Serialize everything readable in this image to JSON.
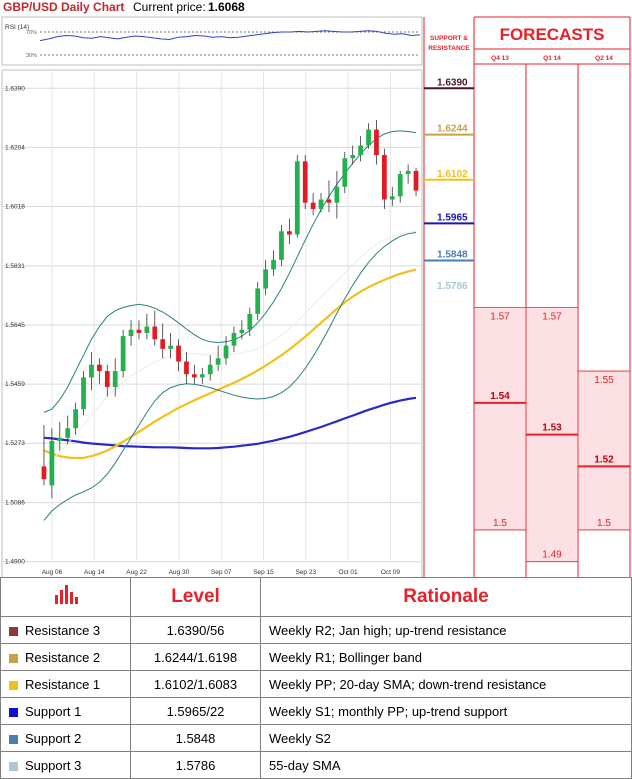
{
  "header": {
    "title": "GBP/USD Daily Chart",
    "price_label": "Current price:",
    "price_value": "1.6068"
  },
  "rsi": {
    "label": "RSI (14)",
    "upper_label": "70%",
    "lower_label": "30%",
    "values": [
      55,
      58,
      62,
      64,
      63,
      60,
      59,
      62,
      60,
      58,
      61,
      63,
      62,
      60,
      58,
      57,
      61,
      62,
      64,
      63,
      61,
      62,
      60,
      61,
      63,
      65,
      67,
      69,
      70,
      70,
      71,
      70,
      71,
      72,
      71,
      70,
      70,
      71,
      72,
      71,
      68,
      66,
      67,
      64,
      65
    ]
  },
  "panel": {
    "support_resistance_label": "SUPPORT & RESISTANCE",
    "forecasts_label": "FORECASTS",
    "quarters": [
      "Q4 13",
      "Q1 14",
      "Q2 14"
    ],
    "forecast_ranges": [
      {
        "quarter": "Q4 13",
        "high": "1.57",
        "mid": "1.54",
        "low": "1.5",
        "high_v": 1.57,
        "mid_v": 1.54,
        "low_v": 1.5
      },
      {
        "quarter": "Q1 14",
        "high": "1.57",
        "mid": "1.53",
        "low": "1.49",
        "high_v": 1.57,
        "mid_v": 1.53,
        "low_v": 1.49
      },
      {
        "quarter": "Q2 14",
        "high": "1.55",
        "mid": "1.52",
        "low": "1.5",
        "high_v": 1.55,
        "mid_v": 1.52,
        "low_v": 1.5
      }
    ],
    "levels": [
      {
        "label": "1.6390",
        "value": 1.639,
        "color": "#4b1528"
      },
      {
        "label": "1.6244",
        "value": 1.6244,
        "color": "#c9a14a"
      },
      {
        "label": "1.6102",
        "value": 1.6102,
        "color": "#f2c018"
      },
      {
        "label": "1.5965",
        "value": 1.5965,
        "color": "#1616b0"
      },
      {
        "label": "1.5848",
        "value": 1.5848,
        "color": "#4a7eb0"
      },
      {
        "label": "1.5786",
        "value": 1.5786,
        "color": "#a9c8d8"
      }
    ]
  },
  "chart_data": {
    "type": "candlestick",
    "title": "GBP/USD Daily Chart",
    "ylim": [
      1.4855,
      1.6435
    ],
    "y_ticks": [
      "1.4900",
      "1.5086",
      "1.5273",
      "1.5459",
      "1.5645",
      "1.5831",
      "1.6018",
      "1.6204",
      "1.6390"
    ],
    "x_ticks": [
      "Aug 06",
      "Aug 14",
      "Aug 22",
      "Aug 30",
      "Sep 07",
      "Sep 15",
      "Sep 23",
      "Oct 01",
      "Oct 09"
    ],
    "candles": [
      [
        1.52,
        1.533,
        1.516,
        1.514
      ],
      [
        1.514,
        1.532,
        1.528,
        1.51
      ],
      [
        1.528,
        1.534,
        1.529,
        1.525
      ],
      [
        1.529,
        1.536,
        1.532,
        1.527
      ],
      [
        1.532,
        1.54,
        1.538,
        1.53
      ],
      [
        1.538,
        1.55,
        1.548,
        1.536
      ],
      [
        1.548,
        1.556,
        1.552,
        1.544
      ],
      [
        1.552,
        1.554,
        1.55,
        1.546
      ],
      [
        1.55,
        1.552,
        1.545,
        1.542
      ],
      [
        1.545,
        1.554,
        1.55,
        1.542
      ],
      [
        1.55,
        1.563,
        1.561,
        1.548
      ],
      [
        1.561,
        1.566,
        1.563,
        1.558
      ],
      [
        1.563,
        1.566,
        1.562,
        1.56
      ],
      [
        1.562,
        1.568,
        1.564,
        1.56
      ],
      [
        1.564,
        1.569,
        1.56,
        1.558
      ],
      [
        1.56,
        1.565,
        1.557,
        1.554
      ],
      [
        1.557,
        1.562,
        1.558,
        1.554
      ],
      [
        1.558,
        1.56,
        1.553,
        1.55
      ],
      [
        1.553,
        1.556,
        1.549,
        1.546
      ],
      [
        1.549,
        1.552,
        1.548,
        1.546
      ],
      [
        1.548,
        1.551,
        1.549,
        1.546
      ],
      [
        1.549,
        1.555,
        1.552,
        1.547
      ],
      [
        1.552,
        1.558,
        1.554,
        1.55
      ],
      [
        1.554,
        1.561,
        1.558,
        1.552
      ],
      [
        1.558,
        1.564,
        1.562,
        1.556
      ],
      [
        1.562,
        1.566,
        1.563,
        1.56
      ],
      [
        1.563,
        1.57,
        1.568,
        1.561
      ],
      [
        1.568,
        1.578,
        1.576,
        1.566
      ],
      [
        1.576,
        1.585,
        1.582,
        1.574
      ],
      [
        1.582,
        1.588,
        1.585,
        1.58
      ],
      [
        1.585,
        1.596,
        1.594,
        1.583
      ],
      [
        1.594,
        1.598,
        1.593,
        1.59
      ],
      [
        1.593,
        1.618,
        1.616,
        1.592
      ],
      [
        1.616,
        1.618,
        1.603,
        1.601
      ],
      [
        1.603,
        1.606,
        1.601,
        1.599
      ],
      [
        1.601,
        1.606,
        1.604,
        1.6
      ],
      [
        1.604,
        1.61,
        1.603,
        1.6
      ],
      [
        1.603,
        1.613,
        1.608,
        1.598
      ],
      [
        1.608,
        1.619,
        1.617,
        1.606
      ],
      [
        1.617,
        1.621,
        1.618,
        1.615
      ],
      [
        1.618,
        1.624,
        1.621,
        1.616
      ],
      [
        1.621,
        1.628,
        1.626,
        1.62
      ],
      [
        1.626,
        1.629,
        1.618,
        1.615
      ],
      [
        1.618,
        1.62,
        1.604,
        1.601
      ],
      [
        1.604,
        1.608,
        1.605,
        1.602
      ],
      [
        1.605,
        1.613,
        1.612,
        1.603
      ],
      [
        1.612,
        1.615,
        1.613,
        1.609
      ],
      [
        1.613,
        1.614,
        1.6068,
        1.605
      ]
    ],
    "series": [
      {
        "name": "",
        "color": "#2929c8",
        "values": [
          1.529,
          1.5288,
          1.5285,
          1.5282,
          1.5279,
          1.5275,
          1.5272,
          1.527,
          1.5268,
          1.5266,
          1.5264,
          1.5263,
          1.5262,
          1.5261,
          1.526,
          1.526,
          1.526,
          1.5259,
          1.5258,
          1.5257,
          1.5257,
          1.5257,
          1.5258,
          1.526,
          1.5262,
          1.5265,
          1.5268,
          1.5271,
          1.5276,
          1.5281,
          1.5287,
          1.5293,
          1.53,
          1.5308,
          1.5316,
          1.5324,
          1.5333,
          1.5342,
          1.5351,
          1.536,
          1.5369,
          1.5378,
          1.5386,
          1.5394,
          1.5401,
          1.5407,
          1.5412,
          1.5416
        ]
      },
      {
        "name": "",
        "color": "#f2c018",
        "values": [
          1.525,
          1.524,
          1.5232,
          1.5228,
          1.5226,
          1.5227,
          1.5232,
          1.524,
          1.525,
          1.5263,
          1.5278,
          1.5293,
          1.5309,
          1.5325,
          1.5341,
          1.5356,
          1.537,
          1.5384,
          1.5396,
          1.5408,
          1.5419,
          1.543,
          1.5441,
          1.5452,
          1.5463,
          1.5475,
          1.5488,
          1.5502,
          1.5517,
          1.5533,
          1.555,
          1.5568,
          1.5588,
          1.5608,
          1.563,
          1.5652,
          1.5674,
          1.5696,
          1.5716,
          1.5734,
          1.575,
          1.5764,
          1.5776,
          1.5787,
          1.5797,
          1.5806,
          1.5813,
          1.582
        ]
      },
      {
        "name": "",
        "color": "#ececec",
        "values": [
          1.52,
          1.522,
          1.5245,
          1.5272,
          1.53,
          1.533,
          1.5362,
          1.5392,
          1.542,
          1.5444,
          1.5466,
          1.5484,
          1.55,
          1.5514,
          1.5528,
          1.554,
          1.5548,
          1.5552,
          1.5554,
          1.5554,
          1.5553,
          1.5552,
          1.5551,
          1.5551,
          1.5553,
          1.5557,
          1.5563,
          1.5571,
          1.5582,
          1.5596,
          1.5613,
          1.5633,
          1.5656,
          1.5682,
          1.5708,
          1.5734,
          1.576,
          1.5785,
          1.581,
          1.5834,
          1.5858,
          1.588,
          1.5898,
          1.5912,
          1.5922,
          1.593,
          1.5936,
          1.594
        ]
      },
      {
        "name": "",
        "color": "#2c7f7f",
        "values": [
          1.537,
          1.538,
          1.541,
          1.545,
          1.55,
          1.555,
          1.56,
          1.564,
          1.5672,
          1.569,
          1.57,
          1.5706,
          1.571,
          1.5706,
          1.5698,
          1.5686,
          1.567,
          1.5652,
          1.5632,
          1.5614,
          1.56,
          1.5592,
          1.559,
          1.5592,
          1.5598,
          1.561,
          1.5628,
          1.5652,
          1.5682,
          1.5718,
          1.576,
          1.5808,
          1.586,
          1.5912,
          1.5962,
          1.6008,
          1.605,
          1.6088,
          1.6122,
          1.6154,
          1.6184,
          1.621,
          1.6232,
          1.6246,
          1.6254,
          1.6256,
          1.6254,
          1.625
        ]
      },
      {
        "name": "",
        "color": "#2c7f7f",
        "values": [
          1.503,
          1.506,
          1.508,
          1.5096,
          1.511,
          1.512,
          1.5132,
          1.515,
          1.5176,
          1.521,
          1.525,
          1.529,
          1.533,
          1.537,
          1.5406,
          1.5432,
          1.5448,
          1.5456,
          1.546,
          1.5458,
          1.5454,
          1.5448,
          1.544,
          1.5432,
          1.5424,
          1.5418,
          1.5414,
          1.5412,
          1.5414,
          1.542,
          1.5432,
          1.545,
          1.5476,
          1.5508,
          1.5546,
          1.5588,
          1.5634,
          1.5682,
          1.5728,
          1.577,
          1.5808,
          1.5842,
          1.587,
          1.5892,
          1.591,
          1.5924,
          1.5932,
          1.5936
        ]
      }
    ]
  },
  "table": {
    "header_level": "Level",
    "header_rationale": "Rationale",
    "rows": [
      {
        "name": "Resistance 3",
        "level": "1.6390/56",
        "rationale": "Weekly R2; Jan high; up-trend resistance",
        "color": "#8b3a3a"
      },
      {
        "name": "Resistance 2",
        "level": "1.6244/1.6198",
        "rationale": "Weekly R1; Bollinger band",
        "color": "#c9a14a"
      },
      {
        "name": "Resistance 1",
        "level": "1.6102/1.6083",
        "rationale": "Weekly PP; 20-day SMA; down-trend resistance",
        "color": "#f2c018"
      },
      {
        "name": "Support 1",
        "level": "1.5965/22",
        "rationale": "Weekly S1; monthly PP; up-trend support",
        "color": "#1010d0"
      },
      {
        "name": "Support 2",
        "level": "1.5848",
        "rationale": "Weekly S2",
        "color": "#4a7eb0"
      },
      {
        "name": "Support 3",
        "level": "1.5786",
        "rationale": "55-day SMA",
        "color": "#a9c8d8"
      }
    ]
  }
}
